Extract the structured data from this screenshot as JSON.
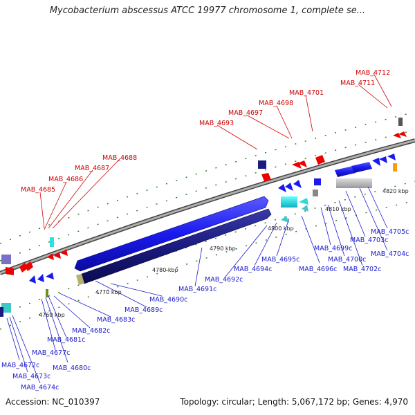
{
  "title": "Mycobacterium abscessus ATCC 19977 chromosome 1, complete se...",
  "accession": "Accession: NC_010397",
  "summary": "Topology: circular; Length: 5,067,172 bp; Genes: 4,970",
  "colors": {
    "forward": "#1a1aee",
    "reverse": "#1a1a80",
    "rna": "#ee0000",
    "red_label": "#cc0000",
    "blue_label": "#1a1acc",
    "backbone": "#888888",
    "tick": "#1e7a1e"
  },
  "kbp_marks": [
    {
      "label": "4760 kbp"
    },
    {
      "label": "4770 kbp"
    },
    {
      "label": "4780 kbp"
    },
    {
      "label": "4790 kbp"
    },
    {
      "label": "4800 kbp"
    },
    {
      "label": "4810 kbp"
    },
    {
      "label": "4820 kbp"
    }
  ],
  "upper_labels": [
    "MAB_4685",
    "MAB_4686",
    "MAB_4687",
    "MAB_4688",
    "MAB_4693",
    "MAB_4697",
    "MAB_4698",
    "MAB_4701",
    "MAB_4711",
    "MAB_4712"
  ],
  "lower_labels": [
    "MAB_4672c",
    "MAB_4673c",
    "MAB_4674c",
    "MAB_4677c",
    "MAB_4680c",
    "MAB_4681c",
    "MAB_4682c",
    "MAB_4683c",
    "MAB_4689c",
    "MAB_4690c",
    "MAB_4691c",
    "MAB_4692c",
    "MAB_4694c",
    "MAB_4695c",
    "MAB_4696c",
    "MAB_4699c",
    "MAB_4700c",
    "MAB_4702c",
    "MAB_4703c",
    "MAB_4704c",
    "MAB_4705c"
  ]
}
